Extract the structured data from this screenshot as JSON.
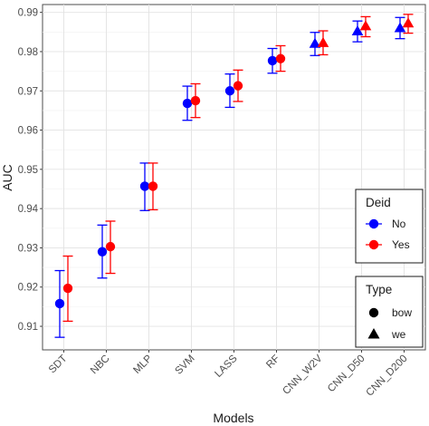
{
  "chart_data": {
    "type": "scatter",
    "xlabel": "Models",
    "ylabel": "AUC",
    "ylim": [
      0.904,
      0.992
    ],
    "yticks": [
      0.91,
      0.92,
      0.93,
      0.94,
      0.95,
      0.96,
      0.97,
      0.98,
      0.99
    ],
    "ytick_labels": [
      "0.91",
      "0.92",
      "0.93",
      "0.94",
      "0.95",
      "0.96",
      "0.97",
      "0.98",
      "0.99"
    ],
    "categories": [
      "SDT",
      "NBC",
      "MLP",
      "SVM",
      "LASS",
      "RF",
      "CNN_W2V",
      "CNN_D50",
      "CNN_D200"
    ],
    "grid": true,
    "legend_placement": "right",
    "colors": {
      "No": "#0000ff",
      "Yes": "#ff0000"
    },
    "series": [
      {
        "name": "No",
        "values": [
          0.9158,
          0.929,
          0.9457,
          0.9668,
          0.97,
          0.9777,
          0.982,
          0.9852,
          0.986
        ],
        "err_low": [
          0.9072,
          0.9223,
          0.9395,
          0.9625,
          0.9658,
          0.9745,
          0.979,
          0.9825,
          0.9833
        ],
        "err_high": [
          0.9242,
          0.9358,
          0.9516,
          0.9712,
          0.9743,
          0.9808,
          0.9849,
          0.9878,
          0.9887
        ],
        "shapes": [
          "circle",
          "circle",
          "circle",
          "circle",
          "circle",
          "circle",
          "triangle",
          "triangle",
          "triangle"
        ]
      },
      {
        "name": "Yes",
        "values": [
          0.9197,
          0.9303,
          0.9457,
          0.9675,
          0.9713,
          0.9782,
          0.9822,
          0.9865,
          0.9872
        ],
        "err_low": [
          0.9113,
          0.9235,
          0.9397,
          0.9632,
          0.9673,
          0.975,
          0.9792,
          0.9838,
          0.9847
        ],
        "err_high": [
          0.9279,
          0.9368,
          0.9516,
          0.9718,
          0.9753,
          0.9815,
          0.9853,
          0.9889,
          0.9895
        ],
        "shapes": [
          "circle",
          "circle",
          "circle",
          "circle",
          "circle",
          "circle",
          "triangle",
          "triangle",
          "triangle"
        ]
      }
    ],
    "legends": [
      {
        "title": "Deid",
        "entries": [
          "No",
          "Yes"
        ],
        "kind": "color"
      },
      {
        "title": "Type",
        "entries": [
          "bow",
          "we"
        ],
        "kind": "shape"
      }
    ]
  }
}
